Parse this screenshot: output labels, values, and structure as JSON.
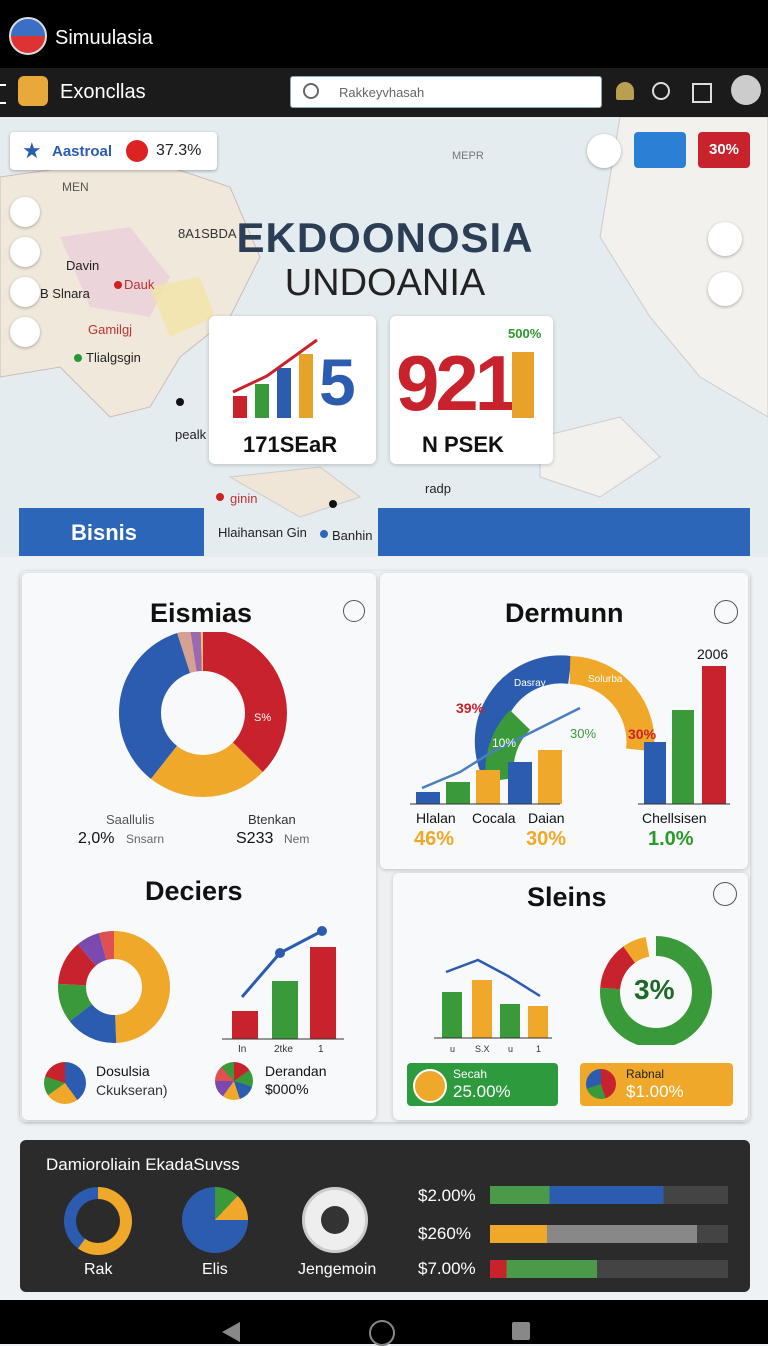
{
  "app_bar": {
    "title": "Simuulasia"
  },
  "toolbar": {
    "title": "Exoncllas",
    "search_placeholder": "Rakkeyvhasah"
  },
  "badge": {
    "label": "Aastroal",
    "value": "37.3%"
  },
  "badge_button": "30%",
  "map_labels": [
    "MEN",
    "MEPR",
    "8A1SBDA",
    "Davin",
    "Dauk",
    "B Slnara",
    "Gamilgj",
    "Tlialgsgin",
    "pealk",
    "ginin",
    "radp"
  ],
  "hero": {
    "title": "EKDOONOSIA",
    "subtitle": "UNDOANIA"
  },
  "stat_cards": [
    {
      "number": "5",
      "label": "171SEaR"
    },
    {
      "number": "921",
      "label": "N PSEK",
      "tag": "500%"
    }
  ],
  "tabs": {
    "active": "Bisnis",
    "middle": "Hlaihansan Gin",
    "middle_2": "Banhin"
  },
  "panels": {
    "eismias": {
      "title": "Eismias",
      "donut_label": "S%",
      "left_label": "Saallulis",
      "left_value": "2,0%",
      "left_sub": "Snsarn",
      "right_label": "Btenkan",
      "right_value": "S233",
      "right_sub": "Nem"
    },
    "dermunn": {
      "title": "Dermunn",
      "year": "2006",
      "arc_left": "Dasray",
      "arc_right": "Solurba",
      "p1": "39%",
      "p2": "10%",
      "p3": "30%",
      "p4": "30%",
      "labels": [
        "Hlalan",
        "Cocala",
        "Daian"
      ],
      "values": [
        "46%",
        "30%"
      ],
      "right_label": "Chellsisen",
      "right_value": "1.0%"
    },
    "deciers": {
      "title": "Deciers",
      "x_labels": [
        "In",
        "2tke",
        "1"
      ],
      "item1_label": "Dosulsia",
      "item1_sub": "Ckukseran)",
      "item2_label": "Derandan",
      "item2_value": "$000%"
    },
    "sleins": {
      "title": "Sleins",
      "donut_value": "3%",
      "x_labels": [
        "u",
        "S.X",
        "u",
        "1"
      ],
      "card1_label": "Secah",
      "card1_value": "25.00%",
      "card2_label": "Rabnal",
      "card2_value": "$1.00%"
    }
  },
  "bottom": {
    "title": "Damioroliain EkadaSuvss",
    "gauges": [
      "Rak",
      "Elis",
      "Jengemoin"
    ],
    "bars": [
      "$2.00%",
      "$260%",
      "$7.00%"
    ]
  }
}
